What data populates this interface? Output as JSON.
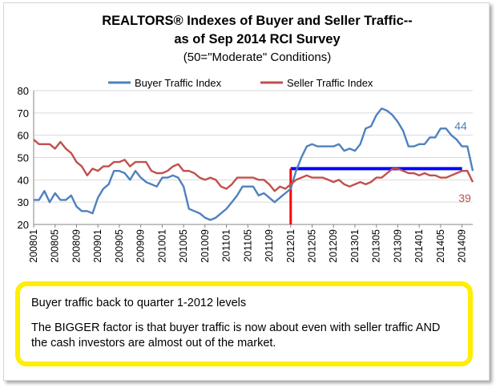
{
  "chart_data": {
    "type": "line",
    "title_lines": [
      "REALTORS® Indexes of Buyer and Seller Traffic--",
      "as of Sep 2014 RCI Survey",
      "(50=\"Moderate\" Conditions)"
    ],
    "ylim": [
      20,
      80
    ],
    "yticks": [
      "20",
      "30",
      "40",
      "50",
      "60",
      "70",
      "80"
    ],
    "xtick_labels": [
      "200801",
      "200805",
      "200809",
      "200901",
      "200905",
      "200909",
      "201001",
      "201005",
      "201009",
      "201101",
      "201105",
      "201109",
      "201201",
      "201205",
      "201209",
      "201301",
      "201305",
      "201309",
      "201401",
      "201405",
      "201409"
    ],
    "series": [
      {
        "name": "Buyer Traffic Index",
        "color": "#4f81bd",
        "values": [
          31,
          31,
          35,
          30,
          34,
          31,
          31,
          33,
          28,
          26,
          26,
          25,
          32,
          36,
          38,
          44,
          44,
          43,
          40,
          44,
          41,
          39,
          38,
          37,
          41,
          41,
          42,
          41,
          37,
          27,
          26,
          25,
          23,
          22,
          23,
          25,
          27,
          30,
          33,
          37,
          37,
          37,
          33,
          34,
          32,
          30,
          32,
          34,
          36,
          44,
          50,
          55,
          56,
          55,
          55,
          55,
          55,
          56,
          53,
          54,
          53,
          56,
          63,
          64,
          69,
          72,
          71,
          69,
          66,
          62,
          55,
          55,
          56,
          56,
          59,
          59,
          63,
          63,
          60,
          58,
          55,
          55,
          44
        ],
        "end_label": "44"
      },
      {
        "name": "Seller Traffic Index",
        "color": "#c0504d",
        "values": [
          58,
          56,
          56,
          56,
          54,
          57,
          54,
          52,
          48,
          46,
          42,
          45,
          44,
          46,
          46,
          48,
          48,
          49,
          46,
          48,
          48,
          48,
          44,
          43,
          43,
          44,
          46,
          47,
          44,
          44,
          43,
          41,
          40,
          41,
          40,
          37,
          36,
          38,
          41,
          41,
          41,
          41,
          40,
          40,
          38,
          35,
          37,
          36,
          38,
          40,
          41,
          42,
          41,
          41,
          41,
          40,
          39,
          40,
          38,
          37,
          38,
          39,
          38,
          39,
          41,
          41,
          43,
          45,
          45,
          44,
          43,
          43,
          42,
          43,
          42,
          42,
          41,
          41,
          42,
          43,
          44,
          44,
          39
        ],
        "end_label": "39"
      }
    ],
    "annotations": {
      "horizontal_line": {
        "value": 45,
        "from_category": "201201",
        "to_category": "201409",
        "color": "#0000ff"
      },
      "vertical_line": {
        "category": "201201",
        "color": "#ff0000"
      }
    }
  },
  "note": {
    "line1": "Buyer traffic back to quarter 1-2012 levels",
    "line2": "The BIGGER factor is that buyer traffic is now about even with seller traffic AND the cash investors are almost out of the market."
  }
}
